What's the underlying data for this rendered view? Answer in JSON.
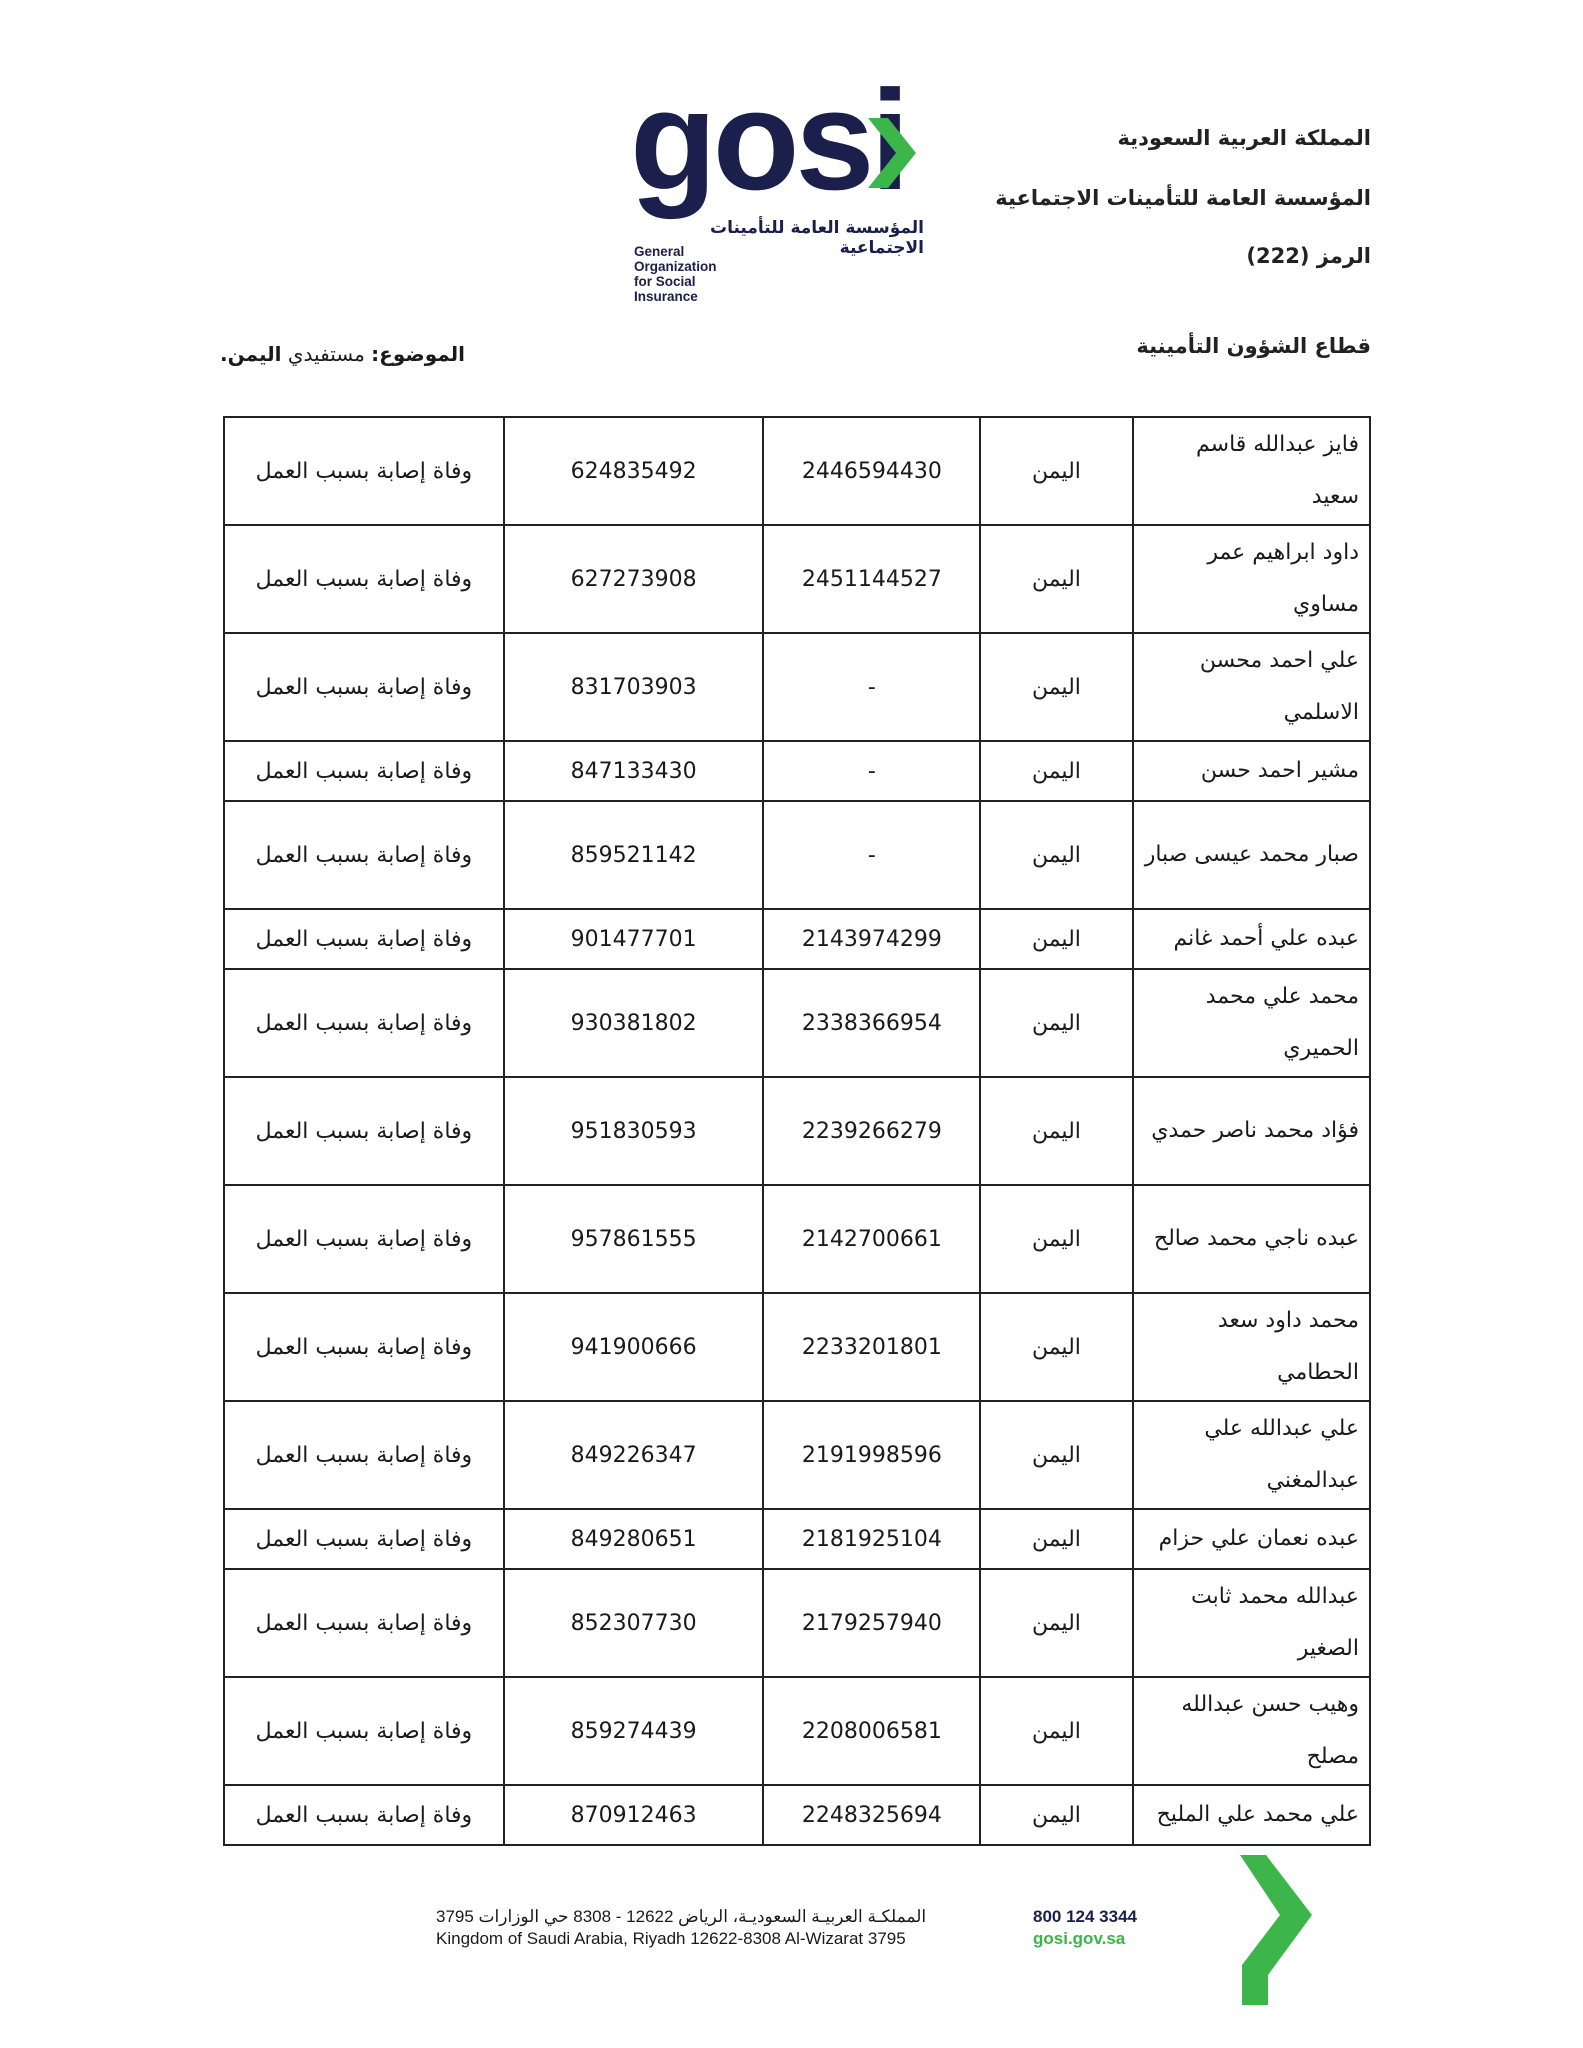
{
  "letterhead": {
    "country": "المملكة العربية السعودية",
    "organization": "المؤسسة العامة للتأمينات الاجتماعية",
    "code": "الرمز (222)",
    "sector": "قطاع الشؤون التأمينية"
  },
  "logo": {
    "word": "gosi",
    "arabic_name": "المؤسسة العامة للتأمينات الاجتماعية",
    "english_name": "General Organization for Social Insurance",
    "brand_color": "#1b1f4b",
    "accent_color": "#3cb54a"
  },
  "subject": {
    "label": "الموضوع:",
    "text": "مستفيدي ",
    "emphasis": "اليمن."
  },
  "table": {
    "rows": [
      {
        "name": "فايز عبدالله قاسم سعيد",
        "country": "اليمن",
        "id1": "2446594430",
        "id2": "624835492",
        "reason": "وفاة إصابة بسبب العمل"
      },
      {
        "name": "داود ابراهيم عمر مساوي",
        "country": "اليمن",
        "id1": "2451144527",
        "id2": "627273908",
        "reason": "وفاة إصابة بسبب العمل"
      },
      {
        "name": "علي احمد محسن الاسلمي",
        "country": "اليمن",
        "id1": "-",
        "id2": "831703903",
        "reason": "وفاة إصابة بسبب العمل"
      },
      {
        "name": "مشير احمد  حسن",
        "country": "اليمن",
        "id1": "-",
        "id2": "847133430",
        "reason": "وفاة إصابة بسبب العمل"
      },
      {
        "name": "صبار محمد عيسى صبار",
        "country": "اليمن",
        "id1": "-",
        "id2": "859521142",
        "reason": "وفاة إصابة بسبب العمل"
      },
      {
        "name": "عبده علي أحمد غانم",
        "country": "اليمن",
        "id1": "2143974299",
        "id2": "901477701",
        "reason": "وفاة إصابة بسبب العمل"
      },
      {
        "name": "محمد علي محمد الحميري",
        "country": "اليمن",
        "id1": "2338366954",
        "id2": "930381802",
        "reason": "وفاة إصابة بسبب العمل"
      },
      {
        "name": "فؤاد محمد ناصر حمدي",
        "country": "اليمن",
        "id1": "2239266279",
        "id2": "951830593",
        "reason": "وفاة إصابة بسبب العمل"
      },
      {
        "name": "عبده ناجي محمد صالح",
        "country": "اليمن",
        "id1": "2142700661",
        "id2": "957861555",
        "reason": "وفاة إصابة بسبب العمل"
      },
      {
        "name": "محمد داود سعد الحطامي",
        "country": "اليمن",
        "id1": "2233201801",
        "id2": "941900666",
        "reason": "وفاة إصابة بسبب العمل"
      },
      {
        "name": "علي عبدالله علي عبدالمغني",
        "country": "اليمن",
        "id1": "2191998596",
        "id2": "849226347",
        "reason": "وفاة إصابة بسبب العمل"
      },
      {
        "name": "عبده نعمان علي حزام",
        "country": "اليمن",
        "id1": "2181925104",
        "id2": "849280651",
        "reason": "وفاة إصابة بسبب العمل"
      },
      {
        "name": "عبدالله محمد ثابت الصغير",
        "country": "اليمن",
        "id1": "2179257940",
        "id2": "852307730",
        "reason": "وفاة إصابة بسبب العمل"
      },
      {
        "name": "وهيب حسن عبدالله مصلح",
        "country": "اليمن",
        "id1": "2208006581",
        "id2": "859274439",
        "reason": "وفاة إصابة بسبب العمل"
      },
      {
        "name": "علي محمد علي المليح",
        "country": "اليمن",
        "id1": "2248325694",
        "id2": "870912463",
        "reason": "وفاة إصابة بسبب العمل"
      }
    ]
  },
  "footer": {
    "address_ar": "المملكـة العربيـة السعوديـة، الرياض 12622 - 8308 حي الوزارات 3795",
    "address_en": "Kingdom of Saudi Arabia, Riyadh 12622-8308 Al-Wizarat 3795",
    "phone": "800 124 3344",
    "website": "gosi.gov.sa"
  }
}
